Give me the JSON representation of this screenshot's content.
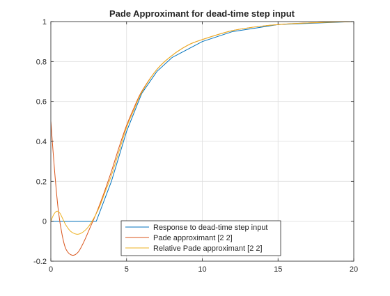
{
  "chart_data": {
    "type": "line",
    "title": "Pade Approximant for dead-time step input",
    "xlabel": "",
    "ylabel": "",
    "xlim": [
      0,
      20
    ],
    "ylim": [
      -0.2,
      1
    ],
    "xticks": [
      0,
      5,
      10,
      15,
      20
    ],
    "yticks": [
      -0.2,
      0,
      0.2,
      0.4,
      0.6,
      0.8,
      1
    ],
    "xtick_labels": [
      "0",
      "5",
      "10",
      "15",
      "20"
    ],
    "ytick_labels": [
      "-0.2",
      "0",
      "0.2",
      "0.4",
      "0.6",
      "0.8",
      "1"
    ],
    "grid": true,
    "legend_position": "bottom-center",
    "series": [
      {
        "name": "Response to dead-time step input",
        "color": "#0072BD",
        "points": [
          [
            0,
            0
          ],
          [
            3,
            0
          ],
          [
            4,
            0.2
          ],
          [
            5,
            0.45
          ],
          [
            6,
            0.64
          ],
          [
            7,
            0.75
          ],
          [
            8,
            0.82
          ],
          [
            10,
            0.9
          ],
          [
            12,
            0.95
          ],
          [
            15,
            0.985
          ],
          [
            20,
            1.0
          ]
        ]
      },
      {
        "name": "Pade approximant [2 2]",
        "color": "#D95319",
        "points": [
          [
            0,
            0.5
          ],
          [
            0.25,
            0.25
          ],
          [
            0.5,
            0.05
          ],
          [
            0.75,
            -0.07
          ],
          [
            1,
            -0.14
          ],
          [
            1.4,
            -0.17
          ],
          [
            1.8,
            -0.155
          ],
          [
            2.2,
            -0.1
          ],
          [
            2.6,
            -0.03
          ],
          [
            3,
            0.04
          ],
          [
            3.5,
            0.14
          ],
          [
            4,
            0.25
          ],
          [
            4.5,
            0.37
          ],
          [
            5,
            0.48
          ],
          [
            5.5,
            0.57
          ],
          [
            6,
            0.65
          ],
          [
            7,
            0.76
          ],
          [
            8,
            0.83
          ],
          [
            9,
            0.88
          ],
          [
            10,
            0.91
          ],
          [
            12,
            0.955
          ],
          [
            14,
            0.978
          ],
          [
            16,
            0.99
          ],
          [
            18,
            0.996
          ],
          [
            20,
            1.0
          ]
        ]
      },
      {
        "name": "Relative Pade approximant [2 2]",
        "color": "#EDB120",
        "points": [
          [
            0,
            0
          ],
          [
            0.2,
            0.035
          ],
          [
            0.4,
            0.05
          ],
          [
            0.6,
            0.04
          ],
          [
            0.8,
            0.01
          ],
          [
            1,
            -0.02
          ],
          [
            1.3,
            -0.05
          ],
          [
            1.7,
            -0.065
          ],
          [
            2,
            -0.06
          ],
          [
            2.4,
            -0.035
          ],
          [
            2.8,
            0.01
          ],
          [
            3.2,
            0.07
          ],
          [
            3.6,
            0.15
          ],
          [
            4,
            0.23
          ],
          [
            4.5,
            0.35
          ],
          [
            5,
            0.47
          ],
          [
            5.5,
            0.56
          ],
          [
            6,
            0.645
          ],
          [
            7,
            0.76
          ],
          [
            8,
            0.83
          ],
          [
            9,
            0.88
          ],
          [
            10,
            0.91
          ],
          [
            12,
            0.955
          ],
          [
            14,
            0.978
          ],
          [
            16,
            0.99
          ],
          [
            18,
            0.996
          ],
          [
            20,
            1.0
          ]
        ]
      }
    ]
  }
}
